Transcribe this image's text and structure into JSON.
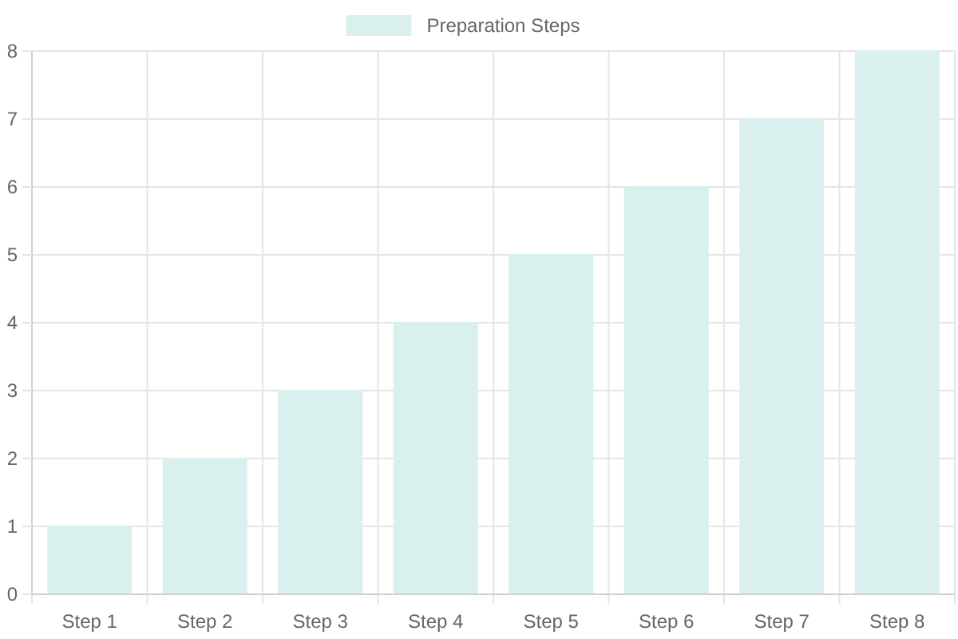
{
  "chart_data": {
    "type": "bar",
    "categories": [
      "Step 1",
      "Step 2",
      "Step 3",
      "Step 4",
      "Step 5",
      "Step 6",
      "Step 7",
      "Step 8"
    ],
    "series": [
      {
        "name": "Preparation Steps",
        "color": "#d9f0ee",
        "values": [
          1,
          2,
          3,
          4,
          5,
          6,
          7,
          8
        ]
      }
    ],
    "ylim": [
      0,
      8
    ],
    "yticks": [
      0,
      1,
      2,
      3,
      4,
      5,
      6,
      7,
      8
    ],
    "grid": true,
    "legend": "top"
  }
}
